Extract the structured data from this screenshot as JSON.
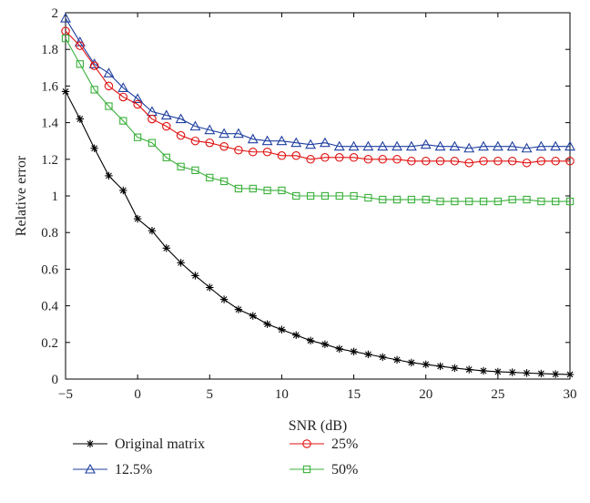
{
  "chart_data": {
    "type": "line",
    "xlabel": "SNR (dB)",
    "ylabel": "Relative error",
    "xlim": [
      -5,
      30
    ],
    "ylim": [
      0,
      2
    ],
    "xticks": [
      -5,
      0,
      5,
      10,
      15,
      20,
      25,
      30
    ],
    "yticks": [
      0,
      0.2,
      0.4,
      0.6,
      0.8,
      1,
      1.2,
      1.4,
      1.6,
      1.8,
      2
    ],
    "xtick_labels": [
      "−5",
      "0",
      "5",
      "10",
      "15",
      "20",
      "25",
      "30"
    ],
    "ytick_labels": [
      "0",
      "0.2",
      "0.4",
      "0.6",
      "0.8",
      "1",
      "1.2",
      "1.4",
      "1.6",
      "1.8",
      "2"
    ],
    "grid": false,
    "legend_position": "bottom",
    "x": [
      -5,
      -4,
      -3,
      -2,
      -1,
      0,
      1,
      2,
      3,
      4,
      5,
      6,
      7,
      8,
      9,
      10,
      11,
      12,
      13,
      14,
      15,
      16,
      17,
      18,
      19,
      20,
      21,
      22,
      23,
      24,
      25,
      26,
      27,
      28,
      29,
      30
    ],
    "series": [
      {
        "name": "Original matrix",
        "color": "#000000",
        "marker": "asterisk",
        "values": [
          1.57,
          1.42,
          1.26,
          1.11,
          1.03,
          0.875,
          0.81,
          0.715,
          0.635,
          0.565,
          0.5,
          0.435,
          0.38,
          0.345,
          0.3,
          0.27,
          0.24,
          0.21,
          0.19,
          0.165,
          0.15,
          0.135,
          0.12,
          0.105,
          0.09,
          0.08,
          0.07,
          0.06,
          0.052,
          0.045,
          0.04,
          0.037,
          0.033,
          0.03,
          0.027,
          0.025
        ]
      },
      {
        "name": "12.5%",
        "color": "#1f3fa0",
        "marker": "triangle",
        "values": [
          1.97,
          1.84,
          1.72,
          1.67,
          1.59,
          1.53,
          1.46,
          1.44,
          1.42,
          1.38,
          1.36,
          1.34,
          1.34,
          1.31,
          1.3,
          1.3,
          1.29,
          1.28,
          1.29,
          1.27,
          1.27,
          1.27,
          1.27,
          1.27,
          1.27,
          1.28,
          1.27,
          1.27,
          1.26,
          1.27,
          1.27,
          1.27,
          1.26,
          1.27,
          1.27,
          1.27
        ]
      },
      {
        "name": "25%",
        "color": "#e01010",
        "marker": "circle",
        "values": [
          1.9,
          1.82,
          1.71,
          1.6,
          1.54,
          1.5,
          1.42,
          1.38,
          1.33,
          1.3,
          1.29,
          1.27,
          1.25,
          1.24,
          1.24,
          1.22,
          1.22,
          1.2,
          1.21,
          1.21,
          1.21,
          1.2,
          1.2,
          1.2,
          1.19,
          1.19,
          1.19,
          1.19,
          1.18,
          1.19,
          1.19,
          1.19,
          1.18,
          1.19,
          1.19,
          1.19
        ]
      },
      {
        "name": "50%",
        "color": "#3ab03a",
        "marker": "square",
        "values": [
          1.86,
          1.72,
          1.58,
          1.49,
          1.41,
          1.32,
          1.29,
          1.21,
          1.16,
          1.14,
          1.1,
          1.08,
          1.04,
          1.04,
          1.03,
          1.03,
          1.0,
          1.0,
          1.0,
          1.0,
          1.0,
          0.99,
          0.98,
          0.98,
          0.98,
          0.98,
          0.97,
          0.97,
          0.97,
          0.97,
          0.97,
          0.98,
          0.98,
          0.97,
          0.97,
          0.97
        ]
      }
    ]
  }
}
